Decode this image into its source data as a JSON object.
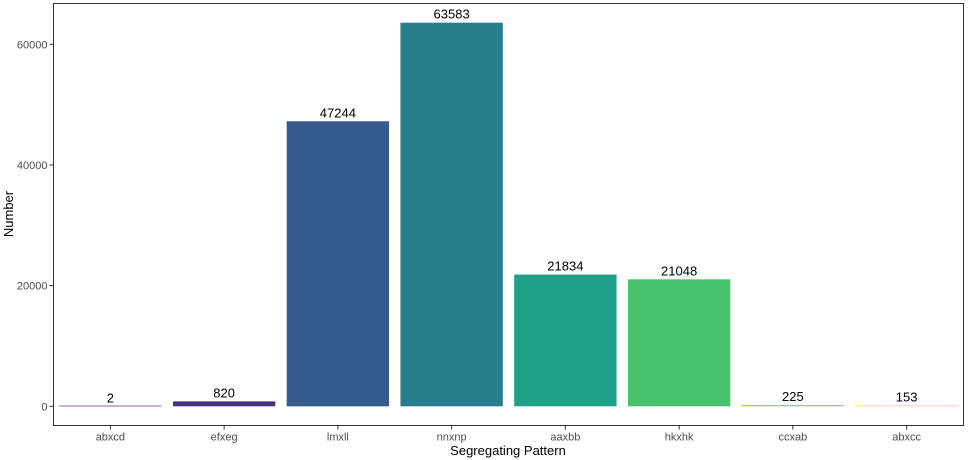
{
  "chart_data": {
    "type": "bar",
    "title": "",
    "xlabel": "Segregating Pattern",
    "ylabel": "Number",
    "categories": [
      "abxcd",
      "efxeg",
      "lmxll",
      "nnxnp",
      "aaxbb",
      "hkxhk",
      "ccxab",
      "abxcc"
    ],
    "values": [
      2,
      820,
      47244,
      63583,
      21834,
      21048,
      225,
      153
    ],
    "data_labels": [
      "2",
      "820",
      "47244",
      "63583",
      "21834",
      "21048",
      "225",
      "153"
    ],
    "colors": [
      "#440154",
      "#46337E",
      "#365C8D",
      "#277F8E",
      "#1FA187",
      "#4AC16D",
      "#9FDA3A",
      "#FDE725"
    ],
    "ylim": [
      -3179,
      66762
    ],
    "yticks": [
      0,
      20000,
      40000,
      60000
    ],
    "ytick_labels": [
      "0",
      "20000",
      "40000",
      "60000"
    ],
    "grid": false,
    "legend": "none"
  }
}
